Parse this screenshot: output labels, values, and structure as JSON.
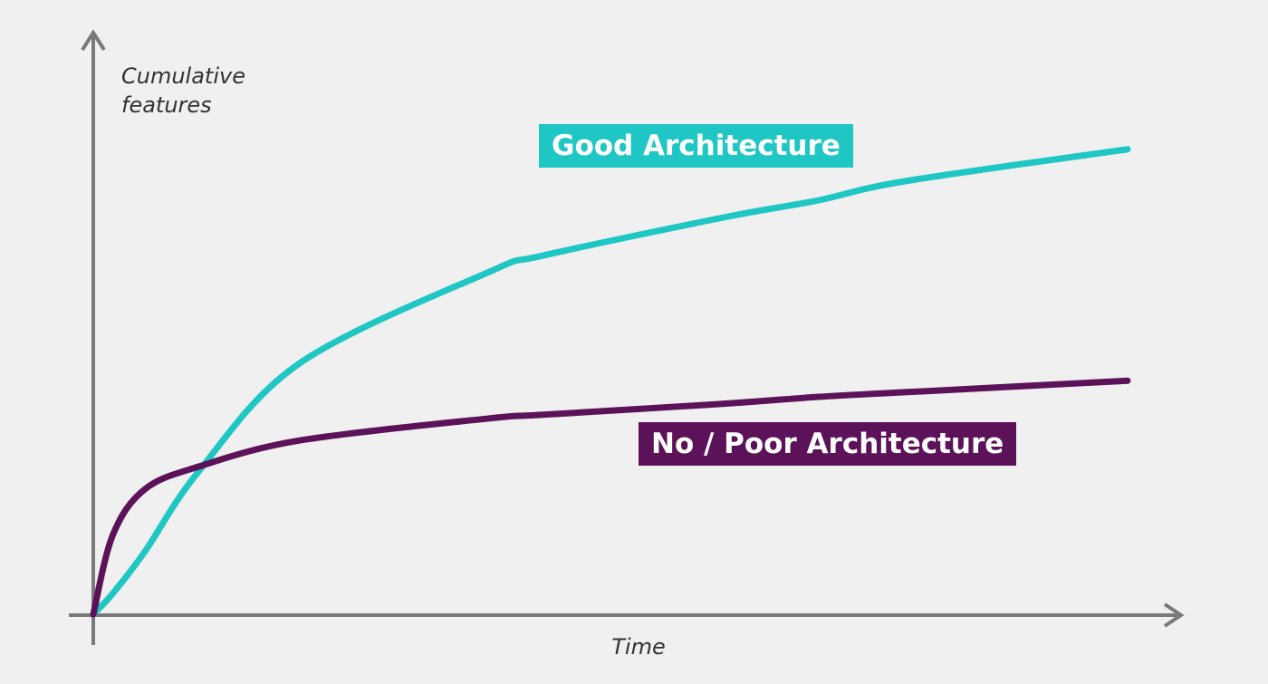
{
  "chart_data": {
    "type": "line",
    "y_label": "Cumulative features",
    "x_label": "Time",
    "x": [
      0,
      1.9,
      5,
      10.2,
      20,
      38.3,
      43.5,
      61,
      70,
      78.5,
      100
    ],
    "xlim": [
      0,
      100
    ],
    "ylim": [
      0,
      100
    ],
    "series": [
      {
        "name": "Good Architecture",
        "color": "#1ec6c4",
        "values": [
          0,
          4,
          12,
          27.3,
          48,
          65.4,
          68.5,
          75.8,
          79,
          82.7,
          88.8
        ]
      },
      {
        "name": "No / Poor Architecture",
        "color": "#5b1259",
        "values": [
          0,
          15.2,
          23.9,
          28.2,
          33.2,
          37.4,
          38.1,
          40.2,
          41.5,
          42.4,
          44.6
        ]
      }
    ]
  }
}
